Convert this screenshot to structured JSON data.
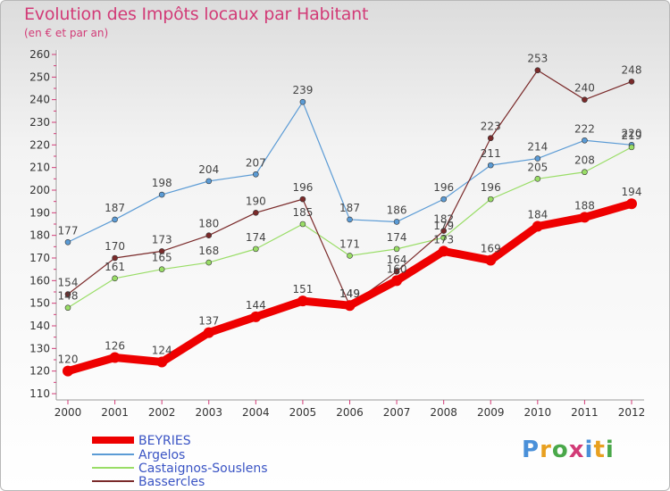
{
  "title": "Evolution des Impôts locaux par Habitant",
  "subtitle": "(en € et par an)",
  "logo": "Proxiti",
  "chart_data": {
    "type": "line",
    "title": "Evolution des Impôts locaux par Habitant",
    "subtitle": "(en € et par an)",
    "x": [
      "2000",
      "2001",
      "2002",
      "2003",
      "2004",
      "2005",
      "2006",
      "2007",
      "2008",
      "2009",
      "2010",
      "2011",
      "2012"
    ],
    "ylim": [
      110,
      260
    ],
    "yticks": [
      110,
      120,
      130,
      140,
      150,
      160,
      170,
      180,
      190,
      200,
      210,
      220,
      230,
      240,
      250,
      260
    ],
    "grid": false,
    "legend_position": "bottom-left",
    "series": [
      {
        "name": "BEYRIES",
        "color": "#ee0000",
        "values": [
          120,
          126,
          124,
          137,
          144,
          151,
          149,
          160,
          173,
          169,
          184,
          188,
          194
        ]
      },
      {
        "name": "Argelos",
        "color": "#5b9bd5",
        "values": [
          177,
          187,
          198,
          204,
          207,
          239,
          187,
          186,
          196,
          211,
          214,
          222,
          220
        ]
      },
      {
        "name": "Castaignos-Souslens",
        "color": "#99dd66",
        "values": [
          148,
          161,
          165,
          168,
          174,
          185,
          171,
          174,
          179,
          196,
          205,
          208,
          219
        ]
      },
      {
        "name": "Bassercles",
        "color": "#7a2a2a",
        "values": [
          154,
          170,
          173,
          180,
          190,
          196,
          149,
          164,
          182,
          223,
          253,
          240,
          248
        ]
      }
    ]
  }
}
